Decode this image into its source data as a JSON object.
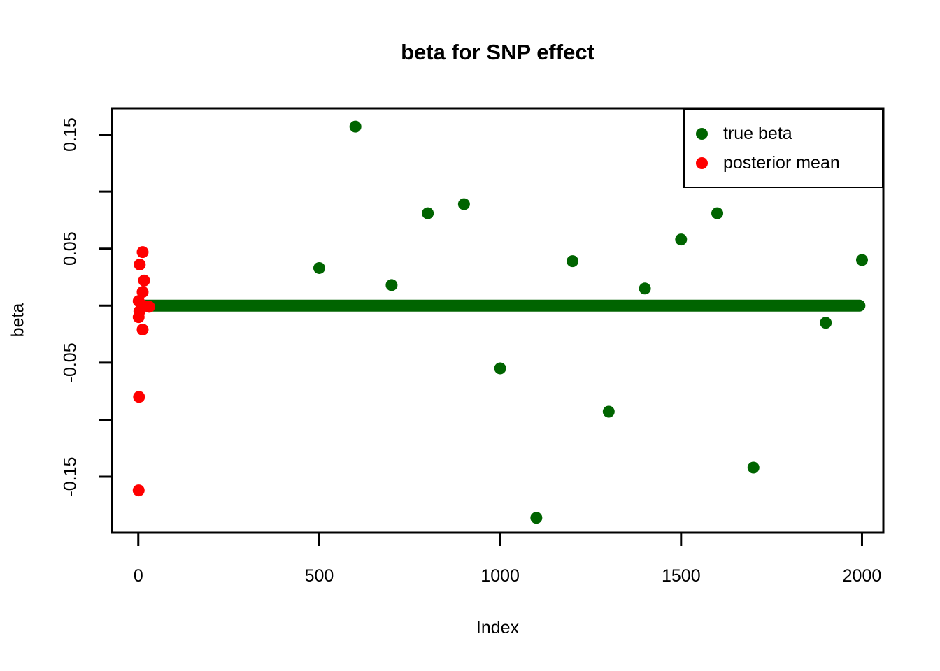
{
  "chart_data": {
    "type": "scatter",
    "title": "beta for SNP effect",
    "xlabel": "Index",
    "ylabel": "beta",
    "xlim": [
      -73,
      2059
    ],
    "ylim": [
      -0.199,
      0.173
    ],
    "grid": false,
    "frame_color": "#000000",
    "text_color": "#000000",
    "x_ticks": {
      "values": [
        0,
        500,
        1000,
        1500,
        2000
      ],
      "labels": [
        "0",
        "500",
        "1000",
        "1500",
        "2000"
      ]
    },
    "y_ticks": {
      "values": [
        0.15,
        0.1,
        0.05,
        0.0,
        -0.05,
        -0.1,
        -0.15
      ],
      "labels": [
        "0.15",
        "",
        "0.05",
        "",
        "-0.05",
        "",
        "-0.15"
      ]
    },
    "series": [
      {
        "name": "true beta",
        "color": "#006400",
        "zero_run": {
          "y": 0,
          "x_from": 14,
          "x_to": 1993
        },
        "points": [
          [
            500,
            0.033
          ],
          [
            600,
            0.157
          ],
          [
            700,
            0.018
          ],
          [
            800,
            0.081
          ],
          [
            900,
            0.089
          ],
          [
            1000,
            -0.055
          ],
          [
            1100,
            -0.186
          ],
          [
            1200,
            0.039
          ],
          [
            1300,
            -0.093
          ],
          [
            1400,
            0.015
          ],
          [
            1500,
            0.058
          ],
          [
            1600,
            0.081
          ],
          [
            1700,
            -0.142
          ],
          [
            1900,
            -0.015
          ],
          [
            2000,
            0.04
          ]
        ]
      },
      {
        "name": "posterior mean",
        "color": "#ff0000",
        "points": [
          [
            12,
            0.047
          ],
          [
            4,
            0.036
          ],
          [
            16,
            0.022
          ],
          [
            12,
            0.012
          ],
          [
            1,
            0.004
          ],
          [
            13,
            0.0
          ],
          [
            30,
            -0.001
          ],
          [
            3,
            -0.005
          ],
          [
            1,
            -0.01
          ],
          [
            12,
            -0.021
          ],
          [
            2,
            -0.08
          ],
          [
            1,
            -0.162
          ]
        ]
      }
    ],
    "legend": {
      "position": "top-right",
      "items": [
        {
          "label": "true beta",
          "color": "#006400"
        },
        {
          "label": "posterior mean",
          "color": "#ff0000"
        }
      ]
    }
  }
}
